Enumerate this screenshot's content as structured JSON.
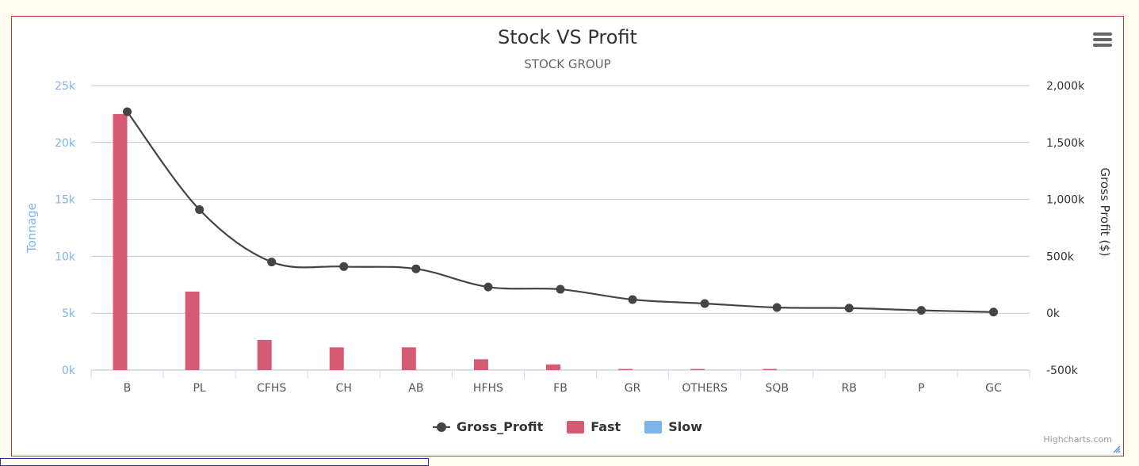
{
  "chart_data": {
    "type": "bar",
    "title": "Stock VS Profit",
    "subtitle": "STOCK GROUP",
    "categories": [
      "B",
      "PL",
      "CFHS",
      "CH",
      "AB",
      "HFHS",
      "FB",
      "GR",
      "OTHERS",
      "SQB",
      "RB",
      "P",
      "GC"
    ],
    "y_left": {
      "label": "Tonnage",
      "range": [
        0,
        25000
      ],
      "ticks": [
        0,
        5000,
        10000,
        15000,
        20000,
        25000
      ],
      "tick_labels": [
        "0k",
        "5k",
        "10k",
        "15k",
        "20k",
        "25k"
      ],
      "color": "#7cb5ec"
    },
    "y_right": {
      "label": "Gross Profit ($)",
      "range": [
        -500000,
        2000000
      ],
      "ticks": [
        -500000,
        0,
        500000,
        1000000,
        1500000,
        2000000
      ],
      "tick_labels": [
        "-500k",
        "0k",
        "500k",
        "1,000k",
        "1,500k",
        "2,000k"
      ]
    },
    "series": [
      {
        "name": "Fast",
        "kind": "column",
        "axis": "left",
        "color": "#d55a73",
        "values": [
          22500,
          6900,
          2650,
          2000,
          2000,
          950,
          500,
          100,
          100,
          100,
          0,
          0,
          0
        ]
      },
      {
        "name": "Slow",
        "kind": "column",
        "axis": "left",
        "color": "#7cb5ec",
        "values": [
          0,
          0,
          0,
          0,
          0,
          0,
          0,
          0,
          0,
          0,
          0,
          0,
          0
        ]
      },
      {
        "name": "Gross_Profit",
        "kind": "spline",
        "axis": "right",
        "color": "#434348",
        "values": [
          1770000,
          910000,
          450000,
          410000,
          390000,
          230000,
          210000,
          120000,
          85000,
          50000,
          45000,
          25000,
          10000
        ]
      }
    ],
    "grid": true,
    "legend_position": "bottom-center"
  },
  "legend": {
    "items": [
      {
        "label": "Gross_Profit"
      },
      {
        "label": "Fast"
      },
      {
        "label": "Slow"
      }
    ]
  },
  "credits": "Highcharts.com"
}
